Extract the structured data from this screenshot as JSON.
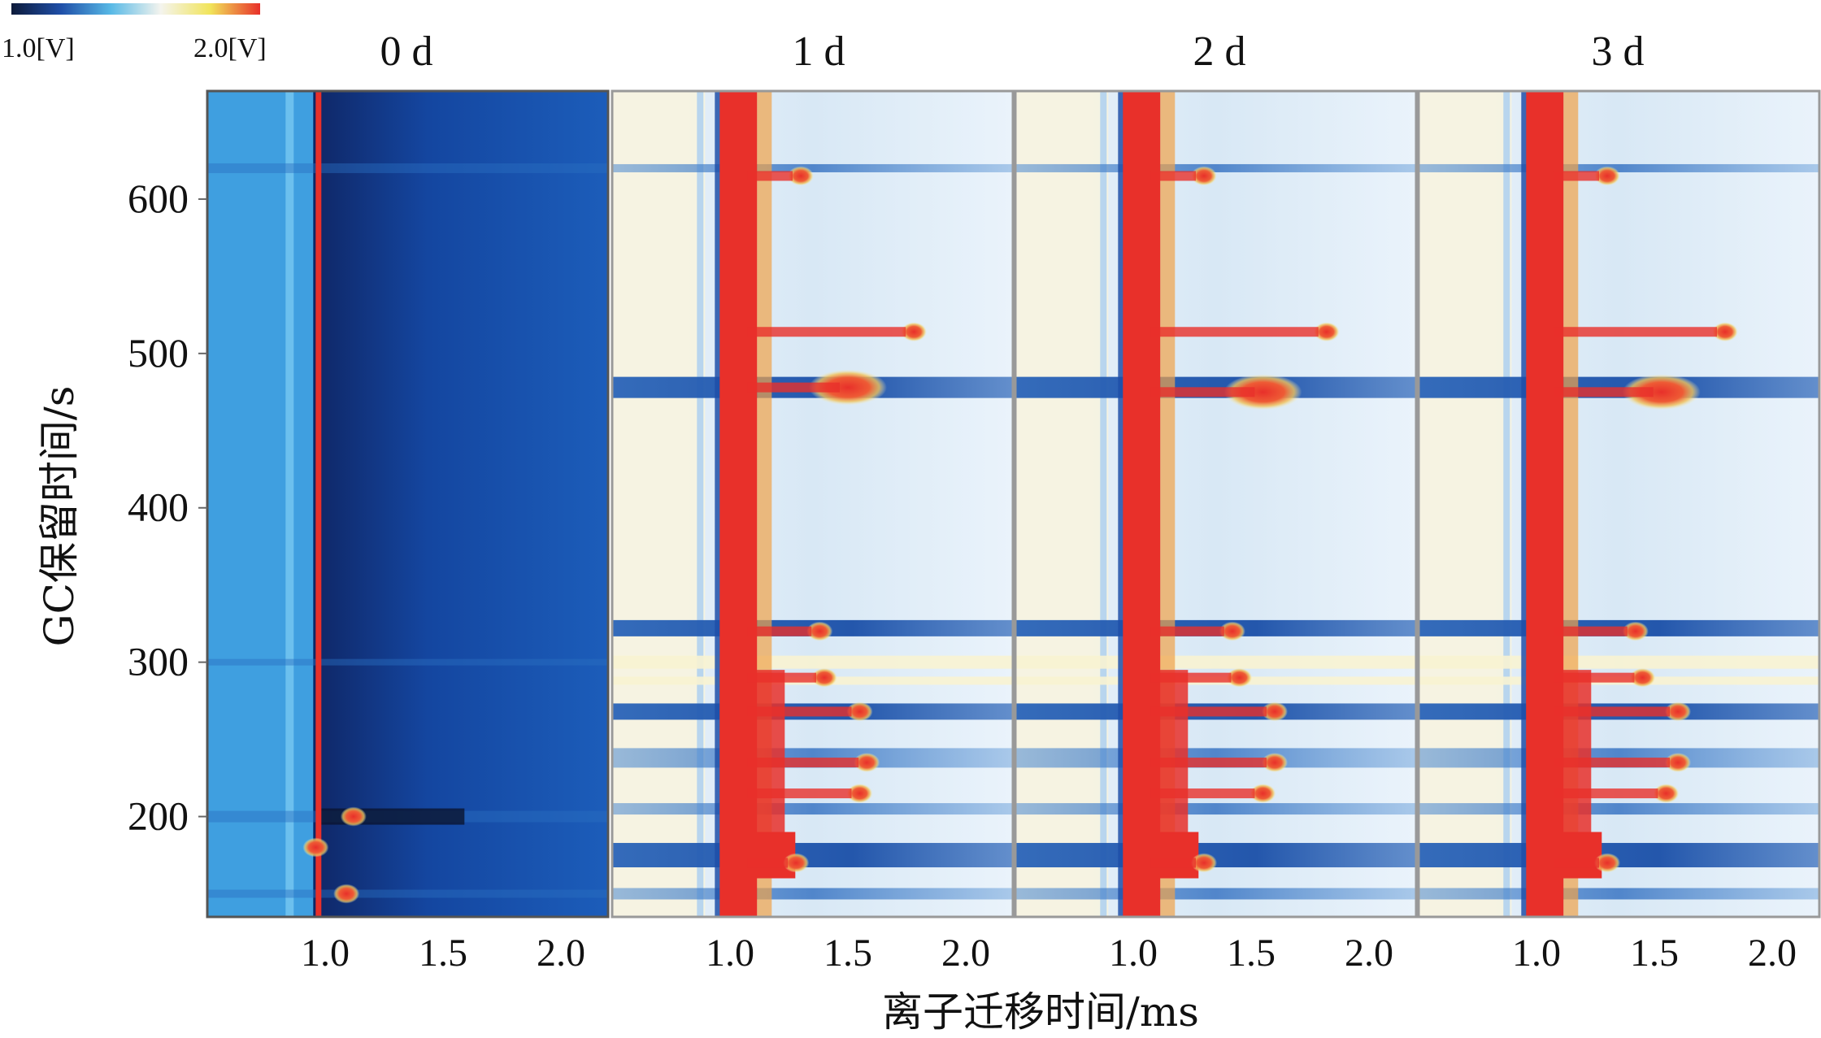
{
  "chart_data": {
    "type": "heatmap",
    "xlabel": "离子迁移时间/ms",
    "ylabel": "GC保留时间/s",
    "xlim": [
      0.5,
      2.2
    ],
    "ylim": [
      135,
      670
    ],
    "x_ticks": [
      "1.0",
      "1.5",
      "2.0"
    ],
    "y_ticks": [
      "200",
      "300",
      "400",
      "500",
      "600"
    ],
    "colorbar": {
      "min_label": "1.0[V]",
      "max_label": "2.0[V]",
      "colors": [
        "#0d1a3a",
        "#1f4fa8",
        "#58b9e6",
        "#f4f4ee",
        "#f1e45a",
        "#e8302a"
      ]
    },
    "panels": [
      {
        "title": "0 d",
        "background": "#1548a6",
        "reactant_ion_peak_ms": 0.97,
        "peaks": [
          {
            "x": 1.12,
            "y": 200
          },
          {
            "x": 1.09,
            "y": 150
          },
          {
            "x": 0.96,
            "y": 180
          }
        ]
      },
      {
        "title": "1 d",
        "background": "#dcebf6",
        "reactant_ion_peak_ms": 0.97,
        "peaks": [
          {
            "x": 1.5,
            "y": 478
          },
          {
            "x": 1.38,
            "y": 320
          },
          {
            "x": 1.55,
            "y": 268
          },
          {
            "x": 1.58,
            "y": 235
          },
          {
            "x": 1.55,
            "y": 215
          },
          {
            "x": 1.3,
            "y": 615
          },
          {
            "x": 1.78,
            "y": 514
          },
          {
            "x": 1.4,
            "y": 290
          },
          {
            "x": 1.28,
            "y": 170
          }
        ]
      },
      {
        "title": "2 d",
        "background": "#dcebf6",
        "reactant_ion_peak_ms": 0.97,
        "peaks": [
          {
            "x": 1.55,
            "y": 475
          },
          {
            "x": 1.42,
            "y": 320
          },
          {
            "x": 1.6,
            "y": 268
          },
          {
            "x": 1.6,
            "y": 235
          },
          {
            "x": 1.55,
            "y": 215
          },
          {
            "x": 1.3,
            "y": 615
          },
          {
            "x": 1.82,
            "y": 514
          },
          {
            "x": 1.45,
            "y": 290
          },
          {
            "x": 1.3,
            "y": 170
          }
        ]
      },
      {
        "title": "3 d",
        "background": "#dcebf6",
        "reactant_ion_peak_ms": 0.97,
        "peaks": [
          {
            "x": 1.53,
            "y": 475
          },
          {
            "x": 1.42,
            "y": 320
          },
          {
            "x": 1.6,
            "y": 268
          },
          {
            "x": 1.6,
            "y": 235
          },
          {
            "x": 1.55,
            "y": 215
          },
          {
            "x": 1.3,
            "y": 615
          },
          {
            "x": 1.8,
            "y": 514
          },
          {
            "x": 1.45,
            "y": 290
          },
          {
            "x": 1.3,
            "y": 170
          }
        ]
      }
    ]
  }
}
